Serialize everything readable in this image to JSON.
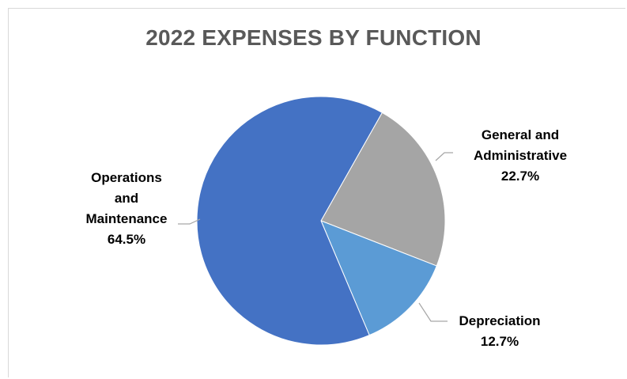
{
  "chart_data": {
    "type": "pie",
    "title": "2022 EXPENSES BY FUNCTION",
    "slices": [
      {
        "label": [
          "General and",
          "Administrative"
        ],
        "value": 22.7,
        "display": "22.7%",
        "color": "#a5a5a5"
      },
      {
        "label": [
          "Depreciation"
        ],
        "value": 12.7,
        "display": "12.7%",
        "color": "#5b9bd5"
      },
      {
        "label": [
          "Operations",
          "and",
          "Maintenance"
        ],
        "value": 64.5,
        "display": "64.5%",
        "color": "#4472c4"
      }
    ],
    "start_angle_deg": 29.5,
    "direction": "clockwise",
    "legend": "none",
    "leader_line_color": "#a6a6a6"
  }
}
